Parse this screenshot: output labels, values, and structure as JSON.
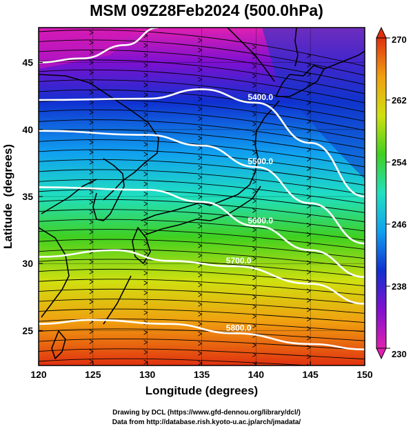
{
  "title": "MSM 09Z28Feb2024 (500.0hPa)",
  "x_axis": {
    "label": "Longitude (degrees)",
    "ticks": [
      "120",
      "125",
      "130",
      "135",
      "140",
      "145",
      "150"
    ],
    "range": [
      120,
      150
    ]
  },
  "y_axis": {
    "label": "Latitude  (degrees)",
    "ticks": [
      "25",
      "30",
      "35",
      "40",
      "45"
    ],
    "range": [
      22.4,
      47.6
    ]
  },
  "colorbar": {
    "ticks": [
      "270",
      "262",
      "254",
      "246",
      "238",
      "230"
    ],
    "range": [
      230,
      270
    ],
    "colors": [
      "#e020b0",
      "#8010d0",
      "#1030d0",
      "#10a0f0",
      "#20e0c0",
      "#40d020",
      "#d0e010",
      "#f0a010",
      "#e03010"
    ]
  },
  "contours": [
    {
      "label": "5400.0",
      "lat_at_lon": [
        [
          120,
          42.2
        ],
        [
          130,
          42.3
        ],
        [
          135,
          43.0
        ],
        [
          140,
          42.0
        ],
        [
          145,
          39.0
        ],
        [
          150,
          35.0
        ]
      ]
    },
    {
      "label": "5500.0",
      "lat_at_lon": [
        [
          120,
          39.9
        ],
        [
          130,
          39.6
        ],
        [
          135,
          38.8
        ],
        [
          140,
          37.2
        ],
        [
          145,
          34.5
        ],
        [
          150,
          31.5
        ]
      ]
    },
    {
      "label": "5600.0",
      "lat_at_lon": [
        [
          120,
          35.7
        ],
        [
          130,
          35.5
        ],
        [
          135,
          34.6
        ],
        [
          140,
          32.8
        ],
        [
          145,
          31.0
        ],
        [
          150,
          29.0
        ]
      ]
    },
    {
      "label": "5700.0",
      "lat_at_lon": [
        [
          120,
          30.5
        ],
        [
          127,
          31.0
        ],
        [
          132,
          30.2
        ],
        [
          138,
          29.8
        ],
        [
          145,
          28.5
        ],
        [
          150,
          27.0
        ]
      ]
    },
    {
      "label": "5800.0",
      "lat_at_lon": [
        [
          120,
          25.5
        ],
        [
          125,
          25.8
        ],
        [
          132,
          25.5
        ],
        [
          138,
          24.8
        ],
        [
          145,
          24.0
        ],
        [
          150,
          23.6
        ]
      ]
    },
    {
      "label": "",
      "lat_at_lon": [
        [
          120,
          45.0
        ],
        [
          124,
          45.3
        ],
        [
          128,
          46.3
        ],
        [
          131,
          47.6
        ]
      ]
    }
  ],
  "footer": {
    "line1": "Drawing by DCL (https://www.gfd-dennou.org/library/dcl/)",
    "line2": "Data from http://database.rish.kyoto-u.ac.jp/arch/jmadata/"
  }
}
